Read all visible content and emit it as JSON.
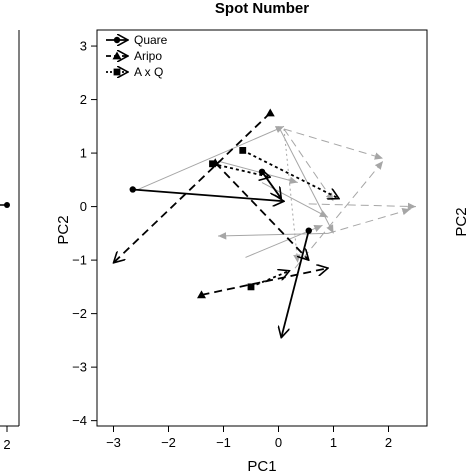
{
  "chart_data": {
    "type": "line",
    "title": "Spot Number",
    "xlabel": "PC1",
    "ylabel": "PC2",
    "right_fragment_label": "PC2",
    "left_fragment_tick": "2",
    "xlim": [
      -3.3,
      2.7
    ],
    "ylim": [
      -4.1,
      3.3
    ],
    "xticks": [
      -3,
      -2,
      -1,
      0,
      1,
      2
    ],
    "yticks": [
      -4,
      -3,
      -2,
      -1,
      0,
      1,
      2,
      3
    ],
    "legend_position": "top-left",
    "series": [
      {
        "name": "Quare",
        "marker": "circle",
        "dash": "solid",
        "color": "#000000",
        "segments": [
          {
            "from": [
              -2.65,
              0.32
            ],
            "to": [
              0.1,
              0.1
            ]
          },
          {
            "from": [
              -0.3,
              0.65
            ],
            "to": [
              0.05,
              0.15
            ]
          },
          {
            "from": [
              0.55,
              -0.45
            ],
            "to": [
              0.05,
              -2.45
            ]
          }
        ]
      },
      {
        "name": "Aripo",
        "marker": "triangle",
        "dash": "dashed",
        "color": "#000000",
        "segments": [
          {
            "from": [
              -1.15,
              0.82
            ],
            "to": [
              0.55,
              -1.0
            ]
          },
          {
            "from": [
              -0.15,
              1.75
            ],
            "to": [
              -3.0,
              -1.05
            ]
          },
          {
            "from": [
              -1.4,
              -1.65
            ],
            "to": [
              0.9,
              -1.15
            ]
          }
        ]
      },
      {
        "name": "A x Q",
        "marker": "square",
        "dash": "dotted",
        "color": "#000000",
        "segments": [
          {
            "from": [
              -0.65,
              1.05
            ],
            "to": [
              1.1,
              0.15
            ]
          },
          {
            "from": [
              -1.2,
              0.8
            ],
            "to": [
              -0.15,
              0.55
            ]
          },
          {
            "from": [
              -0.5,
              -1.5
            ],
            "to": [
              0.2,
              -1.2
            ]
          }
        ]
      }
    ],
    "background_arrows": [
      {
        "from": [
          -2.6,
          0.3
        ],
        "to": [
          0.1,
          1.5
        ],
        "dash": "solid"
      },
      {
        "from": [
          0.0,
          1.5
        ],
        "to": [
          1.0,
          -0.5
        ],
        "dash": "solid"
      },
      {
        "from": [
          0.9,
          -0.5
        ],
        "to": [
          -1.1,
          -0.55
        ],
        "dash": "solid"
      },
      {
        "from": [
          -1.1,
          0.85
        ],
        "to": [
          0.35,
          0.45
        ],
        "dash": "solid"
      },
      {
        "from": [
          0.1,
          1.45
        ],
        "to": [
          1.9,
          0.9
        ],
        "dash": "dashed"
      },
      {
        "from": [
          0.1,
          1.45
        ],
        "to": [
          1.0,
          0.1
        ],
        "dash": "dashed"
      },
      {
        "from": [
          0.55,
          0.05
        ],
        "to": [
          2.5,
          0.0
        ],
        "dash": "dashed"
      },
      {
        "from": [
          0.9,
          -0.5
        ],
        "to": [
          2.4,
          -0.05
        ],
        "dash": "dashed"
      },
      {
        "from": [
          0.3,
          -1.15
        ],
        "to": [
          1.9,
          0.85
        ],
        "dash": "dashed"
      },
      {
        "from": [
          0.1,
          1.45
        ],
        "to": [
          0.35,
          -1.05
        ],
        "dash": "dotted"
      },
      {
        "from": [
          -0.6,
          -0.95
        ],
        "to": [
          0.8,
          -0.35
        ],
        "dash": "solid"
      },
      {
        "from": [
          -0.3,
          0.45
        ],
        "to": [
          0.9,
          -0.2
        ],
        "dash": "solid"
      }
    ]
  }
}
